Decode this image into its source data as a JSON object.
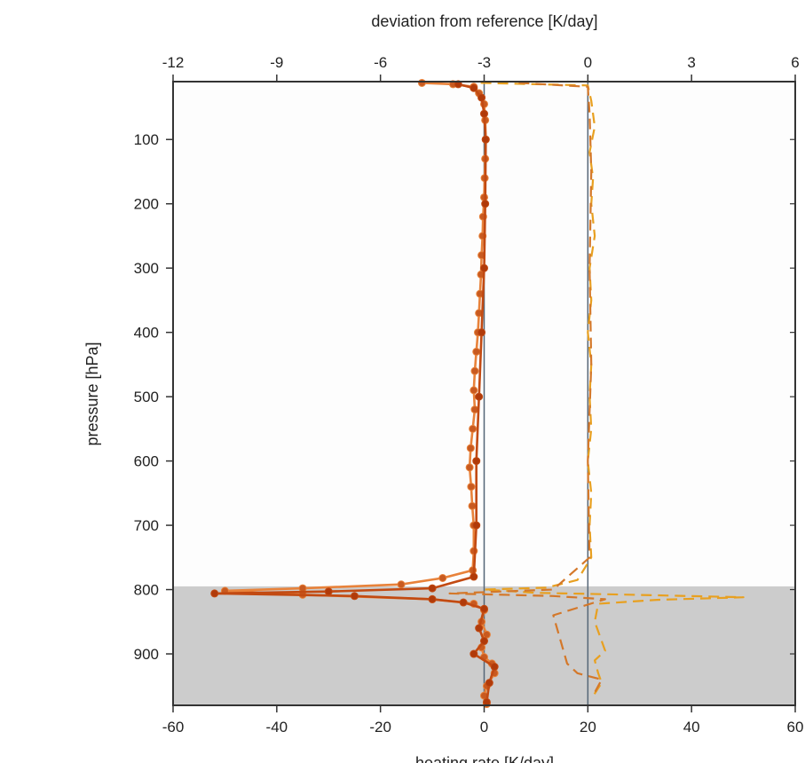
{
  "chart_data": {
    "type": "line",
    "title": "",
    "xlabel_bottom": "heating rate [K/day]",
    "xlabel_top": "deviation from reference [K/day]",
    "ylabel": "pressure [hPa]",
    "xlim_bottom": [
      -60,
      60
    ],
    "xlim_top": [
      -12,
      6
    ],
    "ylim": [
      980,
      10
    ],
    "y_inverted": true,
    "x_ticks_bottom": [
      "-60",
      "-40",
      "-20",
      "0",
      "20",
      "40",
      "60"
    ],
    "x_ticks_top": [
      "-12",
      "-9",
      "-6",
      "-3",
      "0",
      "3",
      "6"
    ],
    "y_ticks": [
      "100",
      "200",
      "300",
      "400",
      "500",
      "600",
      "700",
      "800",
      "900"
    ],
    "y_tick_values": [
      100,
      200,
      300,
      400,
      500,
      600,
      700,
      800,
      900
    ],
    "grid": false,
    "shaded_region": {
      "p_from": 795,
      "p_to": 980,
      "color": "#cccccc"
    },
    "reference_lines": [
      {
        "axis": "bottom",
        "x": 0,
        "color": "#556677"
      },
      {
        "axis": "bottom",
        "x": 20,
        "color": "#556677"
      }
    ],
    "series": [
      {
        "axis": "bottom",
        "style": "solid-markers",
        "color": "#e8823a",
        "marker_color": "#c85a20",
        "points": [
          [
            -12,
            12
          ],
          [
            -6,
            14
          ],
          [
            -2,
            18
          ],
          [
            -1,
            28
          ],
          [
            0,
            45
          ],
          [
            0.2,
            70
          ],
          [
            0.3,
            100
          ],
          [
            0.2,
            130
          ],
          [
            0.1,
            160
          ],
          [
            0,
            190
          ],
          [
            -0.2,
            220
          ],
          [
            -0.3,
            250
          ],
          [
            -0.5,
            280
          ],
          [
            -0.6,
            310
          ],
          [
            -0.8,
            340
          ],
          [
            -1,
            370
          ],
          [
            -1.2,
            400
          ],
          [
            -1.5,
            430
          ],
          [
            -1.8,
            460
          ],
          [
            -2,
            490
          ],
          [
            -1.8,
            520
          ],
          [
            -2.2,
            550
          ],
          [
            -2.6,
            580
          ],
          [
            -2.8,
            610
          ],
          [
            -2.5,
            640
          ],
          [
            -2.3,
            670
          ],
          [
            -2,
            700
          ],
          [
            -2,
            740
          ],
          [
            -2.2,
            770
          ],
          [
            -8,
            782
          ],
          [
            -16,
            792
          ],
          [
            -35,
            798
          ],
          [
            -50,
            802
          ],
          [
            -35,
            808
          ],
          [
            -10,
            815
          ],
          [
            -2,
            822
          ],
          [
            0,
            832
          ],
          [
            -0.5,
            850
          ],
          [
            0.5,
            870
          ],
          [
            -0.5,
            890
          ],
          [
            0,
            905
          ],
          [
            1.5,
            915
          ],
          [
            2,
            930
          ],
          [
            0.5,
            950
          ],
          [
            0,
            965
          ],
          [
            0.5,
            978
          ]
        ]
      },
      {
        "axis": "bottom",
        "style": "solid-markers",
        "color": "#c24a12",
        "marker_color": "#b03a0a",
        "points": [
          [
            -5,
            14
          ],
          [
            -2,
            20
          ],
          [
            -0.5,
            35
          ],
          [
            0,
            60
          ],
          [
            0.3,
            100
          ],
          [
            0.2,
            200
          ],
          [
            0,
            300
          ],
          [
            -0.5,
            400
          ],
          [
            -1,
            500
          ],
          [
            -1.5,
            600
          ],
          [
            -1.5,
            700
          ],
          [
            -2,
            780
          ],
          [
            -10,
            798
          ],
          [
            -30,
            803
          ],
          [
            -52,
            806
          ],
          [
            -25,
            810
          ],
          [
            -10,
            815
          ],
          [
            -4,
            820
          ],
          [
            0,
            830
          ],
          [
            -1,
            860
          ],
          [
            0,
            880
          ],
          [
            -2,
            900
          ],
          [
            2,
            920
          ],
          [
            1,
            945
          ],
          [
            0.5,
            975
          ]
        ]
      },
      {
        "axis": "top",
        "style": "dashed",
        "color": "#e8a020",
        "points": [
          [
            -3.1,
            12
          ],
          [
            0,
            16
          ],
          [
            0.1,
            40
          ],
          [
            0.2,
            80
          ],
          [
            0.05,
            120
          ],
          [
            0.15,
            160
          ],
          [
            0.1,
            200
          ],
          [
            0.2,
            250
          ],
          [
            0.05,
            300
          ],
          [
            0.1,
            350
          ],
          [
            0,
            400
          ],
          [
            0.1,
            450
          ],
          [
            0.05,
            500
          ],
          [
            0.1,
            550
          ],
          [
            0,
            600
          ],
          [
            0.1,
            650
          ],
          [
            0.05,
            700
          ],
          [
            0.1,
            750
          ],
          [
            -0.3,
            785
          ],
          [
            -1.2,
            797
          ],
          [
            -3,
            800
          ],
          [
            -1.5,
            805
          ],
          [
            1.2,
            808
          ],
          [
            4.5,
            812
          ],
          [
            2,
            816
          ],
          [
            0.3,
            822
          ],
          [
            0.2,
            850
          ],
          [
            0.4,
            880
          ],
          [
            0.5,
            895
          ],
          [
            0.2,
            910
          ],
          [
            0.3,
            930
          ],
          [
            0.4,
            945
          ],
          [
            0.1,
            970
          ]
        ]
      },
      {
        "axis": "top",
        "style": "dashed",
        "color": "#d4782a",
        "points": [
          [
            -2,
            12
          ],
          [
            0,
            18
          ],
          [
            0.05,
            60
          ],
          [
            0.1,
            150
          ],
          [
            0.05,
            300
          ],
          [
            0.1,
            450
          ],
          [
            0,
            600
          ],
          [
            0.05,
            750
          ],
          [
            -1,
            800
          ],
          [
            -4,
            806
          ],
          [
            -1,
            810
          ],
          [
            0.5,
            815
          ],
          [
            -1,
            840
          ],
          [
            -0.6,
            915
          ],
          [
            -0.3,
            930
          ],
          [
            0.4,
            940
          ],
          [
            0.2,
            960
          ]
        ]
      }
    ]
  }
}
